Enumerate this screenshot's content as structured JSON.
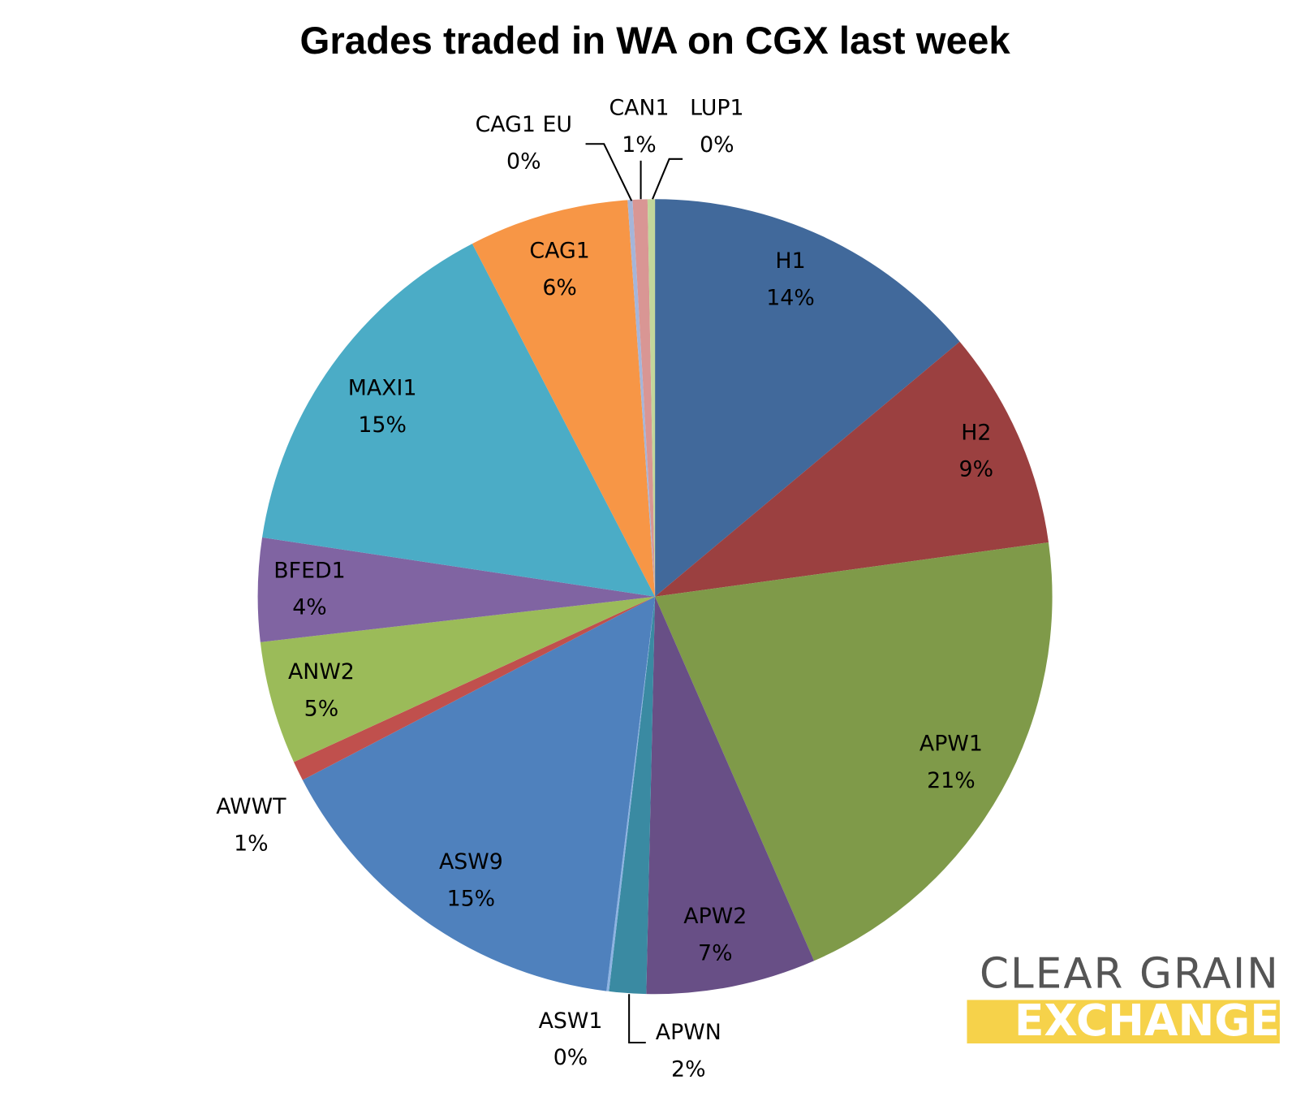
{
  "chart_data": {
    "type": "pie",
    "title": "Grades traded in WA on CGX last week",
    "categories": [
      "H1",
      "H2",
      "APW1",
      "APW2",
      "APWN",
      "ASW1",
      "ASW9",
      "AWWT",
      "ANW2",
      "BFED1",
      "MAXI1",
      "CAG1",
      "CAG1 EU",
      "CAN1",
      "LUP1"
    ],
    "values": [
      13.9,
      8.9,
      20.6,
      6.9,
      1.5,
      0.1,
      15.4,
      0.8,
      5.0,
      4.2,
      15.0,
      6.5,
      0.2,
      0.6,
      0.3
    ],
    "value_labels": [
      "14%",
      "9%",
      "21%",
      "7%",
      "2%",
      "0%",
      "15%",
      "1%",
      "5%",
      "4%",
      "15%",
      "6%",
      "0%",
      "1%",
      "0%"
    ],
    "colors": [
      "#41699b",
      "#9b4040",
      "#7f9a49",
      "#684f86",
      "#3a8aa2",
      "#8db3e2",
      "#4f81bd",
      "#c0504d",
      "#9bbb59",
      "#8064a2",
      "#4bacc6",
      "#f79646",
      "#a5b5d9",
      "#d99694",
      "#c3d69b"
    ]
  },
  "logo": {
    "line1": "CLEAR GRAIN",
    "line2": "EXCHANGE"
  }
}
